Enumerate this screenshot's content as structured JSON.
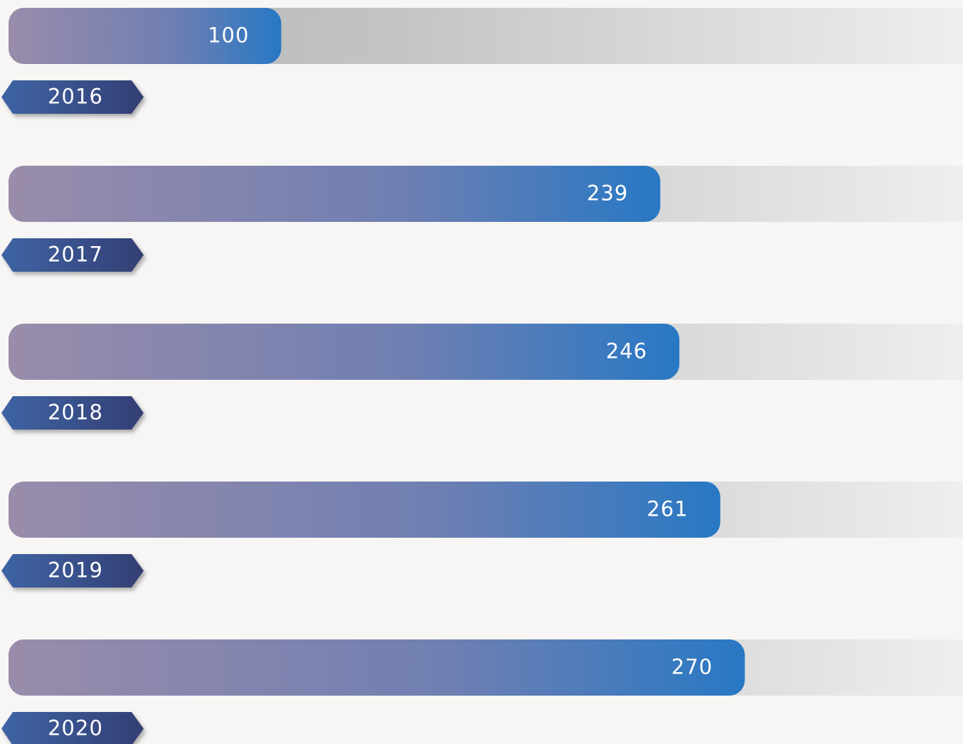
{
  "chart_data": {
    "type": "bar",
    "orientation": "horizontal",
    "categories": [
      "2016",
      "2017",
      "2018",
      "2019",
      "2020"
    ],
    "values": [
      100,
      239,
      246,
      261,
      270
    ],
    "xlim": [
      0,
      350
    ]
  }
}
